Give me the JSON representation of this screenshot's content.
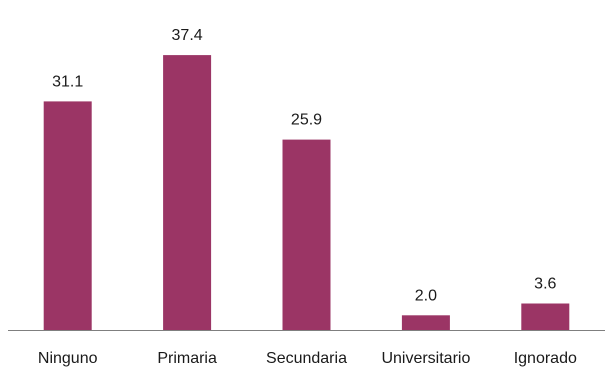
{
  "chart_data": {
    "type": "bar",
    "categories": [
      "Ninguno",
      "Primaria",
      "Secundaria",
      "Universitario",
      "Ignorado"
    ],
    "values": [
      31.1,
      37.4,
      25.9,
      2.0,
      3.6
    ],
    "value_labels": [
      "31.1",
      "37.4",
      "25.9",
      "2.0",
      "3.6"
    ],
    "ylim": [
      0,
      38.5
    ],
    "grid": false,
    "legend": "none",
    "bar_color": "#9b3565",
    "axis_color": "#7f7f7f",
    "text_color": "#1a1a1a"
  }
}
